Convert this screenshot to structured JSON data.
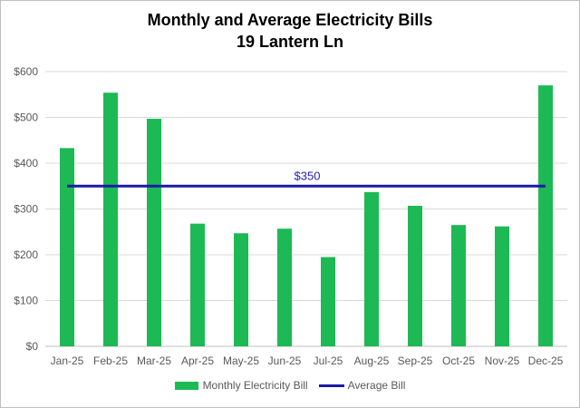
{
  "chart_data": {
    "type": "bar",
    "title": "Monthly and Average Electricity Bills",
    "subtitle": "19 Lantern Ln",
    "categories": [
      "Jan-25",
      "Feb-25",
      "Mar-25",
      "Apr-25",
      "May-25",
      "Jun-25",
      "Jul-25",
      "Aug-25",
      "Sep-25",
      "Oct-25",
      "Nov-25",
      "Dec-25"
    ],
    "series": [
      {
        "name": "Monthly Electricity Bill",
        "type": "bar",
        "color": "#1db954",
        "values": [
          433,
          554,
          497,
          268,
          247,
          257,
          195,
          337,
          307,
          265,
          262,
          570
        ]
      },
      {
        "name": "Average Bill",
        "type": "line",
        "color": "#1a1aa6",
        "values": [
          350,
          350,
          350,
          350,
          350,
          350,
          350,
          350,
          350,
          350,
          350,
          350
        ]
      }
    ],
    "average_label": "$350",
    "ylim": [
      0,
      600
    ],
    "yticks": [
      0,
      100,
      200,
      300,
      400,
      500,
      600
    ],
    "ytick_labels": [
      "$0",
      "$100",
      "$200",
      "$300",
      "$400",
      "$500",
      "$600"
    ],
    "grid": true,
    "legend_position": "bottom"
  }
}
